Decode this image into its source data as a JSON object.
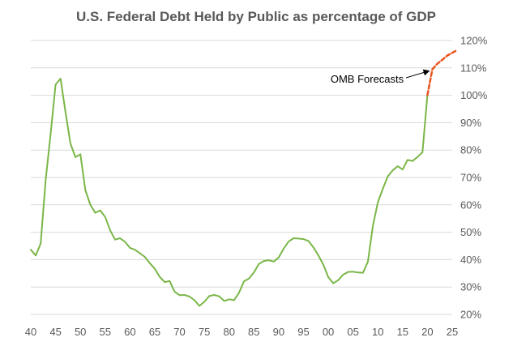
{
  "chart_data": {
    "type": "line",
    "title": "U.S. Federal Debt Held by Public as percentage of GDP",
    "xlabel": "",
    "ylabel": "",
    "xlim": [
      1940,
      2026
    ],
    "ylim": [
      20,
      120
    ],
    "x_ticks": [
      1940,
      1945,
      1950,
      1955,
      1960,
      1965,
      1970,
      1975,
      1980,
      1985,
      1990,
      1995,
      2000,
      2005,
      2010,
      2015,
      2020,
      2025
    ],
    "x_tick_labels": [
      "40",
      "45",
      "50",
      "55",
      "60",
      "65",
      "70",
      "75",
      "80",
      "85",
      "90",
      "95",
      "00",
      "05",
      "10",
      "15",
      "20",
      "25"
    ],
    "y_ticks": [
      20,
      30,
      40,
      50,
      60,
      70,
      80,
      90,
      100,
      110,
      120
    ],
    "y_tick_labels": [
      "20%",
      "30%",
      "40%",
      "50%",
      "60%",
      "70%",
      "80%",
      "90%",
      "100%",
      "110%",
      "120%"
    ],
    "y_axis_side": "right",
    "grid": true,
    "legend": "none",
    "series": [
      {
        "color": "#7ab648",
        "style": "solid",
        "x": [
          1940,
          1941,
          1942,
          1943,
          1944,
          1945,
          1946,
          1947,
          1948,
          1949,
          1950,
          1951,
          1952,
          1953,
          1954,
          1955,
          1956,
          1957,
          1958,
          1959,
          1960,
          1961,
          1962,
          1963,
          1964,
          1965,
          1966,
          1967,
          1968,
          1969,
          1970,
          1971,
          1972,
          1973,
          1974,
          1975,
          1976,
          1977,
          1978,
          1979,
          1980,
          1981,
          1982,
          1983,
          1984,
          1985,
          1986,
          1987,
          1988,
          1989,
          1990,
          1991,
          1992,
          1993,
          1994,
          1995,
          1996,
          1997,
          1998,
          1999,
          2000,
          2001,
          2002,
          2003,
          2004,
          2005,
          2006,
          2007,
          2008,
          2009,
          2010,
          2011,
          2012,
          2013,
          2014,
          2015,
          2016,
          2017,
          2018,
          2019,
          2020
        ],
        "values": [
          43.6,
          41.5,
          45.9,
          69.2,
          86.0,
          103.9,
          106.1,
          93.9,
          82.4,
          77.4,
          78.5,
          65.4,
          60.1,
          57.1,
          58.0,
          55.6,
          50.7,
          47.3,
          47.8,
          46.5,
          44.3,
          43.6,
          42.3,
          41.0,
          38.7,
          36.7,
          33.7,
          31.8,
          32.2,
          28.3,
          27.0,
          27.1,
          26.5,
          25.2,
          23.1,
          24.6,
          26.7,
          27.1,
          26.6,
          24.9,
          25.5,
          25.2,
          27.9,
          32.1,
          33.1,
          35.3,
          38.4,
          39.5,
          39.8,
          39.3,
          40.8,
          44.0,
          46.6,
          47.8,
          47.7,
          47.5,
          46.8,
          44.5,
          41.6,
          38.2,
          33.6,
          31.4,
          32.5,
          34.5,
          35.5,
          35.6,
          35.3,
          35.2,
          39.3,
          52.3,
          60.9,
          65.9,
          70.4,
          72.6,
          74.1,
          72.9,
          76.4,
          76.0,
          77.5,
          79.2,
          100.1
        ]
      },
      {
        "color": "#e8541c",
        "style": "dashed",
        "x": [
          2020,
          2021,
          2022,
          2023,
          2024,
          2025,
          2026
        ],
        "values": [
          100.1,
          109.5,
          111.5,
          113.0,
          114.5,
          115.5,
          116.5
        ]
      }
    ],
    "annotations": [
      {
        "text": "OMB Forecasts",
        "x": 2021,
        "y": 109.5
      }
    ]
  }
}
